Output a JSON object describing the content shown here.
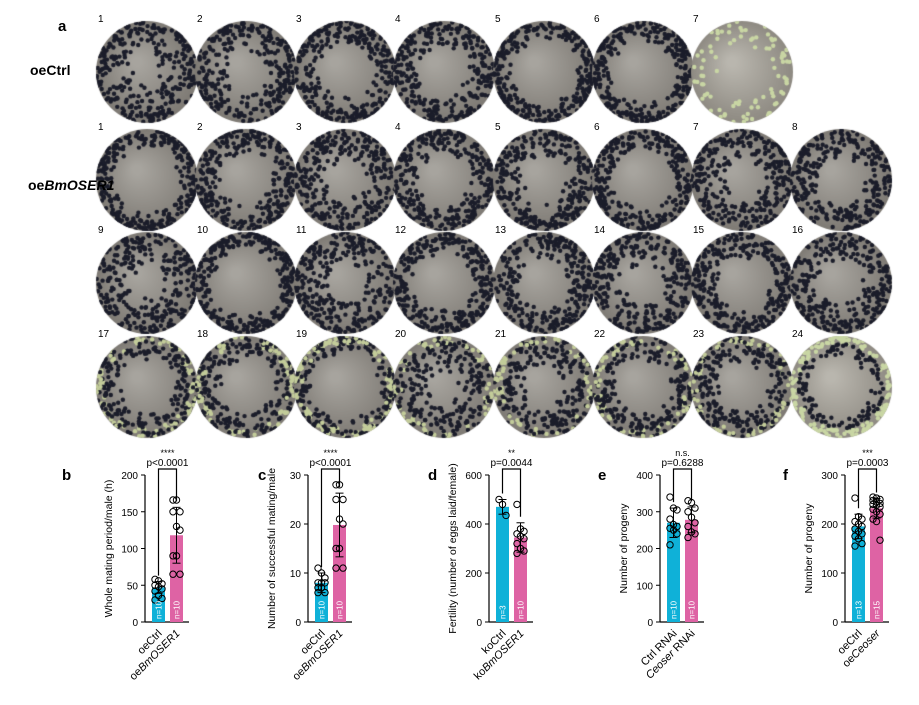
{
  "panel_a": {
    "letter": "a",
    "rows": [
      {
        "label_prefix": "oe",
        "label_italic": "",
        "label_suffix": "Ctrl",
        "dishes": [
          "1",
          "2",
          "3",
          "4",
          "5",
          "6",
          "7"
        ]
      },
      {
        "label_prefix": "oe",
        "label_italic": "BmOSER1",
        "label_suffix": "",
        "dishes": [
          "1",
          "2",
          "3",
          "4",
          "5",
          "6",
          "7",
          "8",
          "9",
          "10",
          "11",
          "12",
          "13",
          "14",
          "15",
          "16",
          "17",
          "18",
          "19",
          "20",
          "21",
          "22",
          "23",
          "24"
        ]
      }
    ]
  },
  "colors": {
    "control": "#0fb1d8",
    "treatment": "#de63a4"
  },
  "chart_data": [
    {
      "type": "bar",
      "letter": "b",
      "ylabel": "Whole mating period/male (h)",
      "ylim": [
        0,
        200
      ],
      "yticks": [
        "0",
        "50",
        "100",
        "150",
        "200"
      ],
      "significance": "****",
      "p_label": "p<0.0001",
      "categories": [
        {
          "plain": "oeCtrl",
          "italic": ""
        },
        {
          "plain": "oe",
          "italic": "BmOSER1"
        }
      ],
      "series": [
        {
          "mean": 47,
          "sd": 8,
          "n_label": "n=10",
          "points": [
            58,
            56,
            52,
            50,
            48,
            45,
            42,
            36,
            32,
            30
          ]
        },
        {
          "mean": 118,
          "sd": 38,
          "n_label": "n=10",
          "points": [
            166,
            166,
            150,
            150,
            130,
            125,
            90,
            90,
            65,
            65
          ]
        }
      ]
    },
    {
      "type": "bar",
      "letter": "c",
      "ylabel": "Number of successful mating/male",
      "ylim": [
        0,
        30
      ],
      "yticks": [
        "0",
        "10",
        "20",
        "30"
      ],
      "significance": "****",
      "p_label": "p<0.0001",
      "categories": [
        {
          "plain": "oeCtrl",
          "italic": ""
        },
        {
          "plain": "oe",
          "italic": "BmOSER1"
        }
      ],
      "series": [
        {
          "mean": 8,
          "sd": 2,
          "n_label": "n=10",
          "points": [
            11,
            10,
            9,
            8,
            8,
            8,
            7,
            7,
            6,
            6
          ]
        },
        {
          "mean": 19.8,
          "sd": 6.5,
          "n_label": "n=10",
          "points": [
            28,
            28,
            25,
            25,
            21,
            20,
            15,
            15,
            11,
            11
          ]
        }
      ]
    },
    {
      "type": "bar",
      "letter": "d",
      "ylabel": "Fertility (number of eggs laid/female)",
      "ylim": [
        0,
        600
      ],
      "yticks": [
        "0",
        "200",
        "400",
        "600"
      ],
      "significance": "**",
      "p_label": "p=0.0044",
      "categories": [
        {
          "plain": "koCtrl",
          "italic": ""
        },
        {
          "plain": "ko",
          "italic": "BmOSER1"
        }
      ],
      "series": [
        {
          "mean": 470,
          "sd": 30,
          "n_label": "n=3",
          "points": [
            500,
            480,
            435
          ]
        },
        {
          "mean": 345,
          "sd": 60,
          "n_label": "n=10",
          "points": [
            480,
            380,
            370,
            360,
            350,
            340,
            320,
            300,
            290,
            280
          ]
        }
      ]
    },
    {
      "type": "bar",
      "letter": "e",
      "ylabel": "Number of progeny",
      "ylim": [
        0,
        400
      ],
      "yticks": [
        "0",
        "100",
        "200",
        "300",
        "400"
      ],
      "significance": "n.s.",
      "p_label": "p=0.6288",
      "categories": [
        {
          "plain": "Ctrl RNAi",
          "italic": ""
        },
        {
          "plain": " RNAi",
          "italic": "Ceoser",
          "italic_first": true
        }
      ],
      "series": [
        {
          "mean": 270,
          "sd": 40,
          "n_label": "n=10",
          "points": [
            340,
            310,
            305,
            280,
            265,
            260,
            255,
            250,
            240,
            210
          ]
        },
        {
          "mean": 278,
          "sd": 35,
          "n_label": "n=10",
          "points": [
            330,
            325,
            310,
            300,
            285,
            270,
            260,
            245,
            240,
            230
          ]
        }
      ]
    },
    {
      "type": "bar",
      "letter": "f",
      "ylabel": "Number of progeny",
      "ylim": [
        0,
        300
      ],
      "yticks": [
        "0",
        "100",
        "200",
        "300"
      ],
      "significance": "***",
      "p_label": "p=0.0003",
      "categories": [
        {
          "plain": "oeCtrl",
          "italic": ""
        },
        {
          "plain": "oe",
          "italic": "Ceoser"
        }
      ],
      "series": [
        {
          "mean": 195,
          "sd": 25,
          "n_label": "n=13",
          "points": [
            253,
            215,
            210,
            205,
            200,
            195,
            190,
            185,
            180,
            175,
            170,
            160,
            155
          ]
        },
        {
          "mean": 232,
          "sd": 20,
          "n_label": "n=15",
          "points": [
            255,
            253,
            250,
            248,
            245,
            242,
            240,
            238,
            235,
            230,
            225,
            220,
            210,
            205,
            167
          ]
        }
      ]
    }
  ]
}
